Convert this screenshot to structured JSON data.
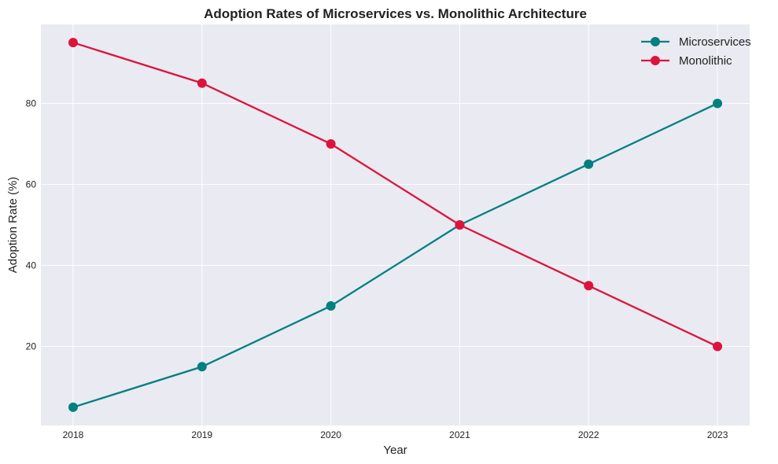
{
  "chart_data": {
    "type": "line",
    "title": "Adoption Rates of Microservices vs. Monolithic Architecture",
    "xlabel": "Year",
    "ylabel": "Adoption Rate (%)",
    "x": [
      "2018",
      "2019",
      "2020",
      "2021",
      "2022",
      "2023"
    ],
    "series": [
      {
        "name": "Microservices",
        "values": [
          5,
          15,
          30,
          50,
          65,
          80
        ],
        "color": "#008080"
      },
      {
        "name": "Monolithic",
        "values": [
          95,
          85,
          70,
          50,
          35,
          20
        ],
        "color": "#DC143C"
      }
    ],
    "ylim": [
      0.5,
      99.5
    ],
    "yticks": [
      20,
      40,
      60,
      80
    ],
    "grid": true,
    "legend": "top-right",
    "background": "#EAEAF2"
  }
}
